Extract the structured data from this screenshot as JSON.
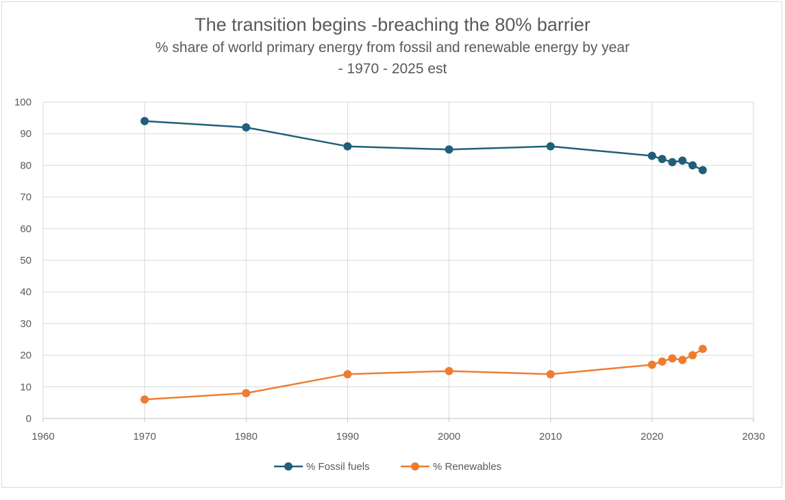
{
  "chart_data": {
    "type": "line",
    "title": "The transition begins -breaching the 80% barrier",
    "subtitle_line1": "% share of world primary energy from fossil and renewable energy by year",
    "subtitle_line2": "- 1970 - 2025 est",
    "xlim": [
      1960,
      2030
    ],
    "ylim": [
      0,
      100
    ],
    "x_ticks": [
      1960,
      1970,
      1980,
      1990,
      2000,
      2010,
      2020,
      2030
    ],
    "y_ticks": [
      0,
      10,
      20,
      30,
      40,
      50,
      60,
      70,
      80,
      90,
      100
    ],
    "grid": true,
    "legend_position": "bottom",
    "series": [
      {
        "name": "% Fossil fuels",
        "color": "#1f5f7a",
        "x": [
          1970,
          1980,
          1990,
          2000,
          2010,
          2020,
          2021,
          2022,
          2023,
          2024,
          2025
        ],
        "y": [
          94,
          92,
          86,
          85,
          86,
          83,
          82,
          81,
          81.5,
          80,
          78.5
        ]
      },
      {
        "name": "% Renewables",
        "color": "#ed7d31",
        "x": [
          1970,
          1980,
          1990,
          2000,
          2010,
          2020,
          2021,
          2022,
          2023,
          2024,
          2025
        ],
        "y": [
          6,
          8,
          14,
          15,
          14,
          17,
          18,
          19,
          18.5,
          20,
          22
        ]
      }
    ]
  }
}
